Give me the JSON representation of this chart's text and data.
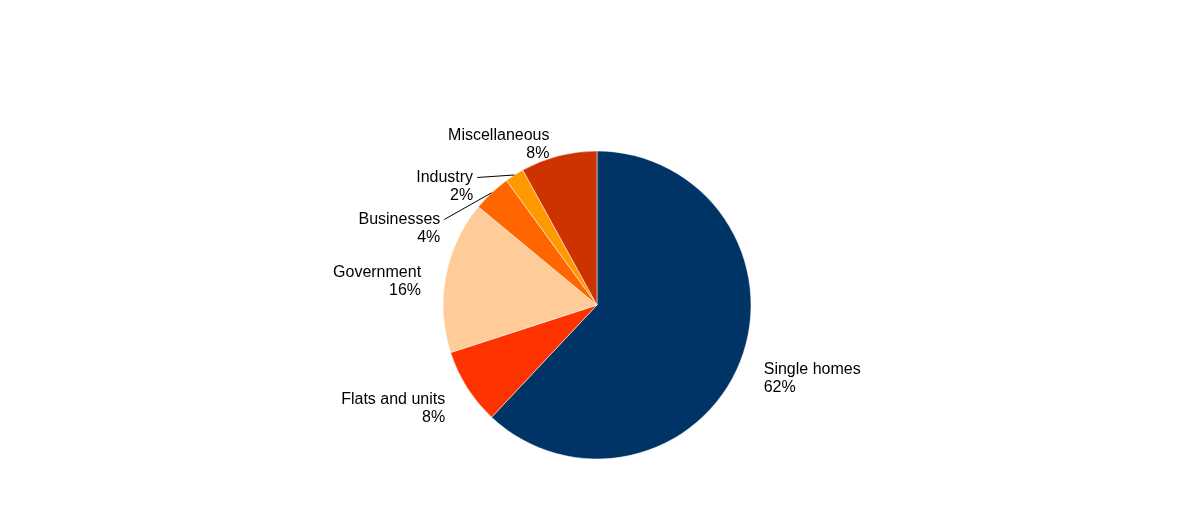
{
  "chart_data": {
    "type": "pie",
    "categories": [
      "Single homes",
      "Flats and units",
      "Government",
      "Businesses",
      "Industry",
      "Miscellaneous"
    ],
    "values": [
      62,
      8,
      16,
      4,
      2,
      8
    ],
    "colors": [
      "#003366",
      "#ff3300",
      "#ffcc99",
      "#ff6600",
      "#ff9900",
      "#cc3300"
    ],
    "value_labels": [
      "62%",
      "8%",
      "16%",
      "4%",
      "2%",
      "8%"
    ]
  }
}
